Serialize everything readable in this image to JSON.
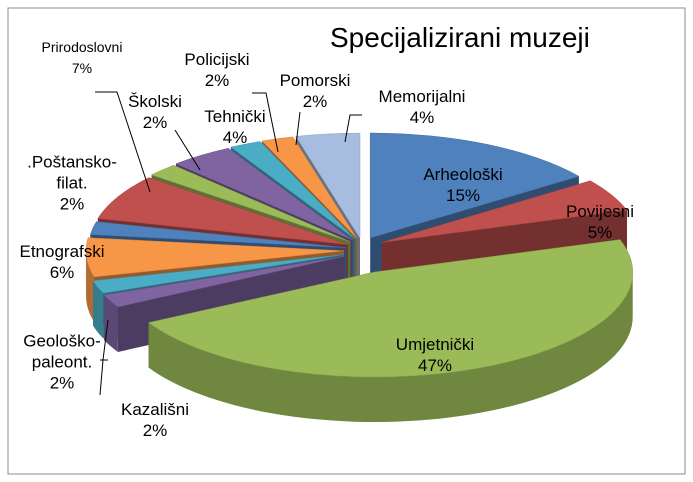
{
  "chart_data": {
    "type": "pie3d",
    "title": "Specijalizirani muzeji",
    "categories": [
      "Arheološki",
      "Povijesni",
      "Umjetnički",
      "Kazališni",
      "Geološko-paleont.",
      "Etnografski",
      ".Poštansko-filat.",
      "Prirodoslovni",
      "Školski",
      "Tehnički",
      "Policijski",
      "Pomorski",
      "Memorijalni"
    ],
    "values": [
      15,
      5,
      47,
      2,
      2,
      6,
      2,
      7,
      2,
      4,
      2,
      2,
      4
    ],
    "value_labels": [
      "15%",
      "5%",
      "47%",
      "2%",
      "2%",
      "6%",
      "2%",
      "7%",
      "2%",
      "4%",
      "2%",
      "2%",
      "4%"
    ],
    "colors": [
      "#4f81bd",
      "#c0504d",
      "#9bbb59",
      "#8064a2",
      "#4bacc6",
      "#f79646",
      "#4f81bd",
      "#c0504d",
      "#9bbb59",
      "#8064a2",
      "#4bacc6",
      "#f79646",
      "#a7bde0"
    ]
  }
}
